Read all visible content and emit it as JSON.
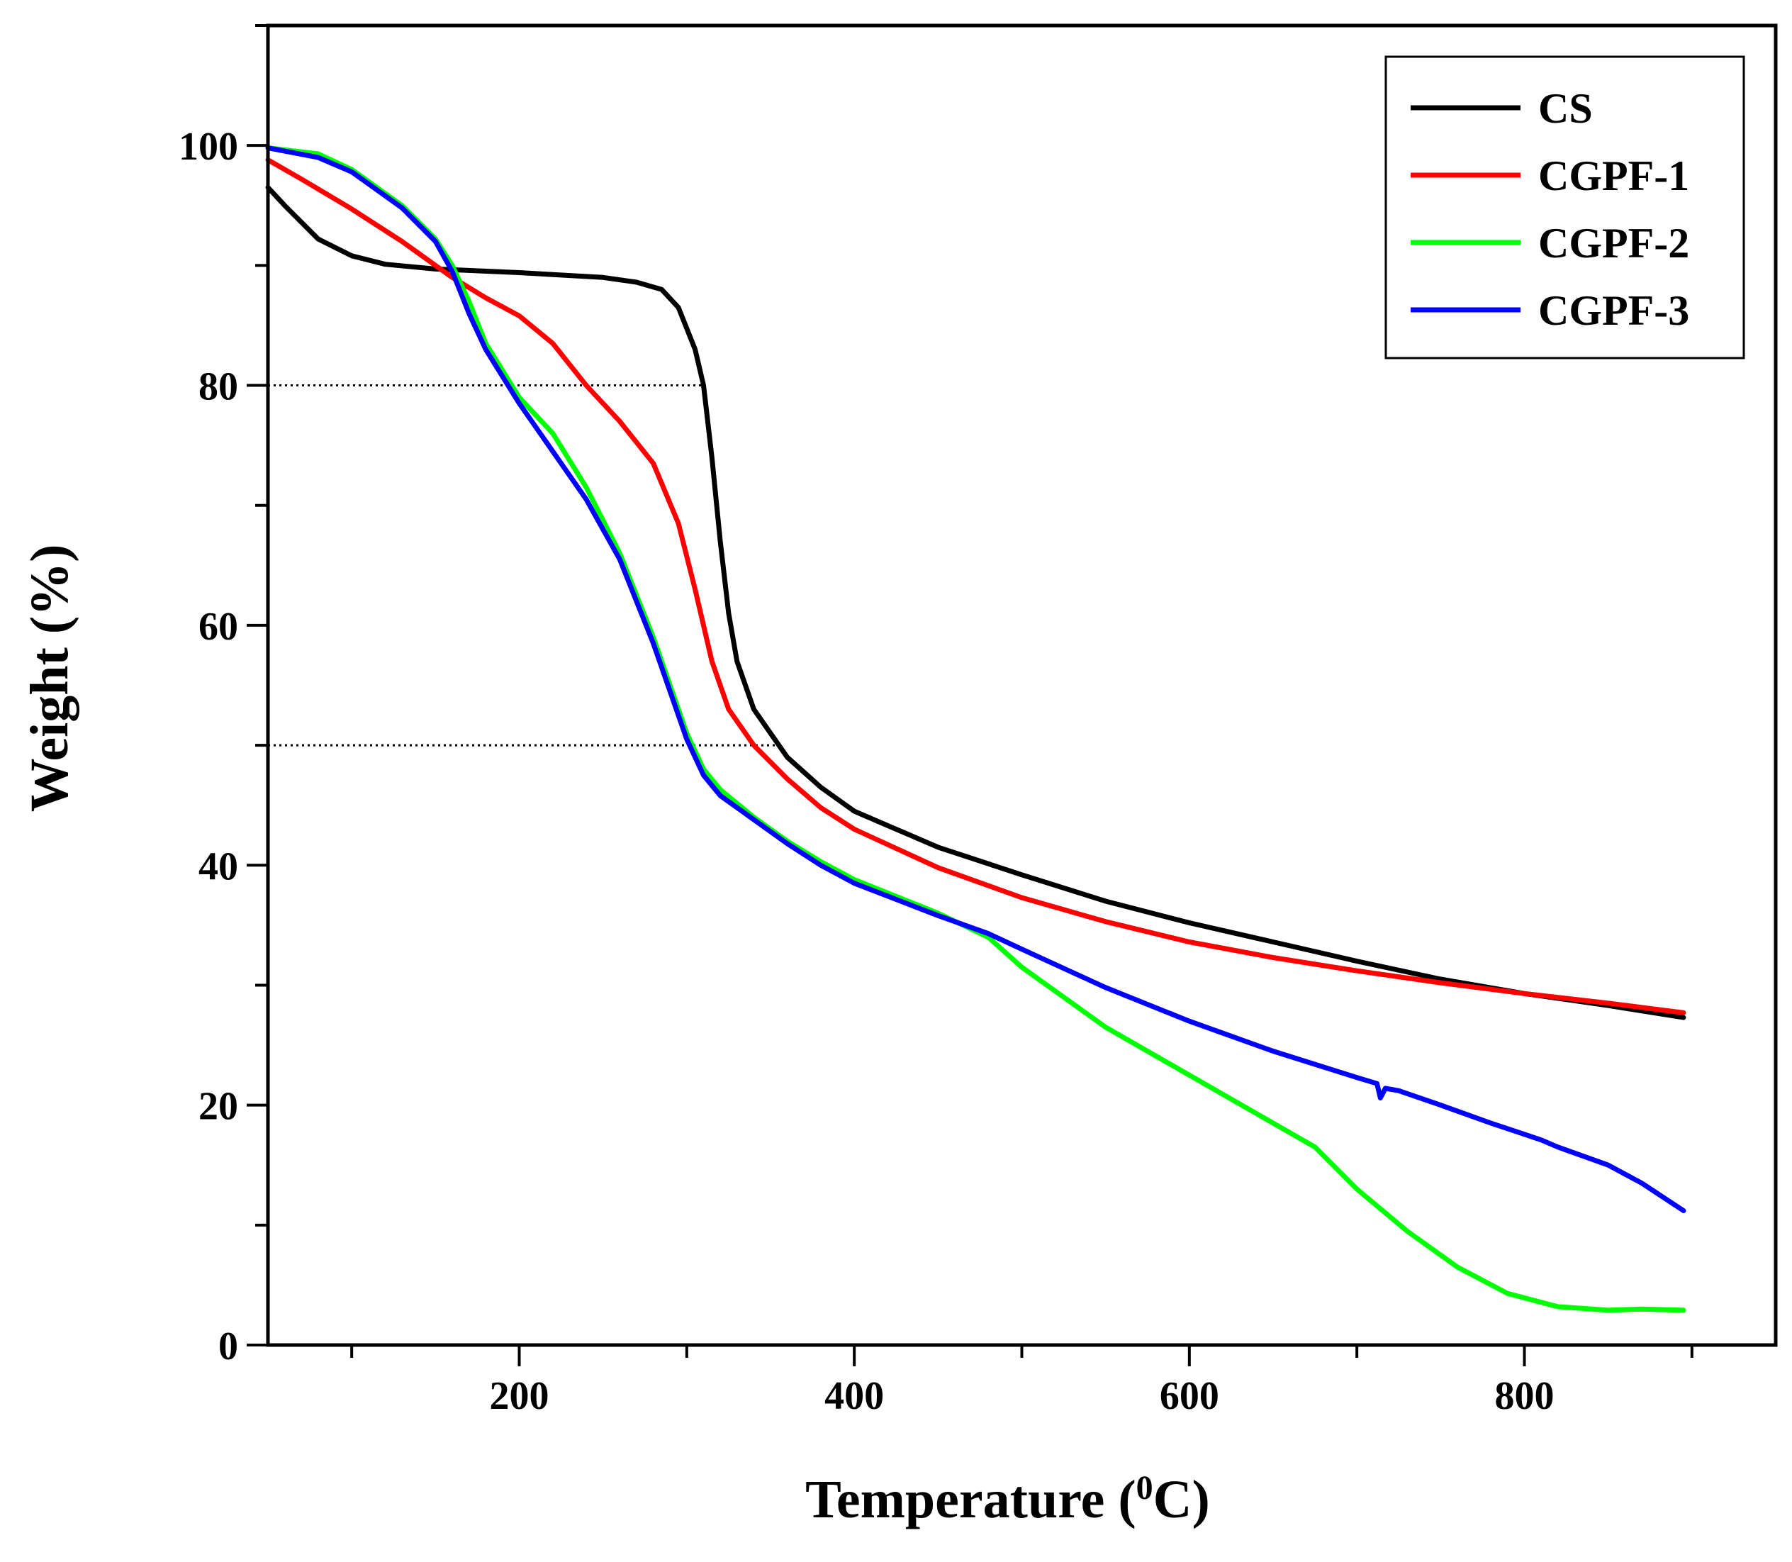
{
  "chart_data": {
    "type": "line",
    "title": "",
    "xlabel": "Temperature (",
    "xlabel_superscript": "0",
    "xlabel_suffix": "C)",
    "ylabel": "Weight (%)",
    "xlim": [
      50,
      950
    ],
    "ylim": [
      0,
      110
    ],
    "x_ticks": [
      200,
      400,
      600,
      800
    ],
    "y_ticks": [
      0,
      20,
      40,
      60,
      80,
      100
    ],
    "x_tick_labels": [
      "200",
      "400",
      "600",
      "800"
    ],
    "y_tick_labels": [
      "0",
      "20",
      "40",
      "60",
      "80",
      "100"
    ],
    "grid": false,
    "legend_position": "top-right",
    "reference_lines": [
      {
        "y": 80,
        "x_start": 50,
        "x_end": 310,
        "style": "dotted"
      },
      {
        "y": 50,
        "x_start": 50,
        "x_end": 355,
        "style": "dotted"
      }
    ],
    "series": [
      {
        "name": "CS",
        "color": "#000000",
        "points": [
          [
            50,
            96.5
          ],
          [
            60,
            95
          ],
          [
            80,
            92.2
          ],
          [
            100,
            90.8
          ],
          [
            120,
            90.1
          ],
          [
            150,
            89.7
          ],
          [
            200,
            89.4
          ],
          [
            250,
            89.0
          ],
          [
            270,
            88.6
          ],
          [
            285,
            88.0
          ],
          [
            295,
            86.5
          ],
          [
            305,
            83
          ],
          [
            310,
            80
          ],
          [
            315,
            74
          ],
          [
            320,
            67
          ],
          [
            325,
            61
          ],
          [
            330,
            57
          ],
          [
            340,
            53
          ],
          [
            360,
            49
          ],
          [
            380,
            46.5
          ],
          [
            400,
            44.5
          ],
          [
            450,
            41.5
          ],
          [
            500,
            39.2
          ],
          [
            550,
            37.0
          ],
          [
            600,
            35.2
          ],
          [
            650,
            33.6
          ],
          [
            700,
            32.0
          ],
          [
            750,
            30.5
          ],
          [
            800,
            29.3
          ],
          [
            850,
            28.3
          ],
          [
            895,
            27.3
          ]
        ]
      },
      {
        "name": "CGPF-1",
        "color": "#ff0000",
        "points": [
          [
            50,
            98.8
          ],
          [
            70,
            97.2
          ],
          [
            100,
            94.7
          ],
          [
            130,
            92.0
          ],
          [
            160,
            89.0
          ],
          [
            180,
            87.3
          ],
          [
            200,
            85.8
          ],
          [
            220,
            83.5
          ],
          [
            240,
            80.0
          ],
          [
            260,
            77.0
          ],
          [
            280,
            73.5
          ],
          [
            295,
            68.5
          ],
          [
            305,
            63
          ],
          [
            315,
            57
          ],
          [
            325,
            53
          ],
          [
            340,
            50
          ],
          [
            360,
            47.2
          ],
          [
            380,
            44.8
          ],
          [
            400,
            43.0
          ],
          [
            450,
            39.8
          ],
          [
            500,
            37.3
          ],
          [
            550,
            35.3
          ],
          [
            600,
            33.6
          ],
          [
            650,
            32.3
          ],
          [
            700,
            31.2
          ],
          [
            750,
            30.2
          ],
          [
            800,
            29.3
          ],
          [
            850,
            28.5
          ],
          [
            895,
            27.7
          ]
        ]
      },
      {
        "name": "CGPF-2",
        "color": "#00ff00",
        "points": [
          [
            50,
            99.8
          ],
          [
            80,
            99.3
          ],
          [
            100,
            98.0
          ],
          [
            130,
            95.0
          ],
          [
            150,
            92.2
          ],
          [
            160,
            90.0
          ],
          [
            170,
            87.0
          ],
          [
            180,
            83.5
          ],
          [
            200,
            79.0
          ],
          [
            220,
            76.0
          ],
          [
            240,
            71.5
          ],
          [
            260,
            66.0
          ],
          [
            280,
            59.0
          ],
          [
            300,
            51.0
          ],
          [
            310,
            48.0
          ],
          [
            320,
            46.3
          ],
          [
            340,
            44.0
          ],
          [
            360,
            42.0
          ],
          [
            380,
            40.3
          ],
          [
            400,
            38.8
          ],
          [
            450,
            36.0
          ],
          [
            480,
            34.0
          ],
          [
            500,
            31.5
          ],
          [
            550,
            26.5
          ],
          [
            600,
            22.5
          ],
          [
            650,
            18.5
          ],
          [
            675,
            16.5
          ],
          [
            700,
            13.0
          ],
          [
            730,
            9.5
          ],
          [
            760,
            6.5
          ],
          [
            790,
            4.3
          ],
          [
            820,
            3.2
          ],
          [
            850,
            2.9
          ],
          [
            870,
            3.0
          ],
          [
            895,
            2.9
          ]
        ]
      },
      {
        "name": "CGPF-3",
        "color": "#0000ff",
        "points": [
          [
            50,
            99.8
          ],
          [
            80,
            99.0
          ],
          [
            100,
            97.8
          ],
          [
            130,
            94.8
          ],
          [
            150,
            92.0
          ],
          [
            160,
            89.5
          ],
          [
            170,
            86.0
          ],
          [
            180,
            83.0
          ],
          [
            200,
            78.5
          ],
          [
            220,
            74.5
          ],
          [
            240,
            70.5
          ],
          [
            260,
            65.5
          ],
          [
            280,
            58.5
          ],
          [
            300,
            50.5
          ],
          [
            310,
            47.5
          ],
          [
            320,
            45.8
          ],
          [
            340,
            43.8
          ],
          [
            360,
            41.8
          ],
          [
            380,
            40.0
          ],
          [
            400,
            38.5
          ],
          [
            450,
            35.8
          ],
          [
            480,
            34.3
          ],
          [
            500,
            33.0
          ],
          [
            550,
            29.8
          ],
          [
            600,
            27.0
          ],
          [
            650,
            24.5
          ],
          [
            700,
            22.3
          ],
          [
            712,
            21.8
          ],
          [
            714,
            20.6
          ],
          [
            717,
            21.4
          ],
          [
            725,
            21.2
          ],
          [
            750,
            20.0
          ],
          [
            780,
            18.5
          ],
          [
            810,
            17.1
          ],
          [
            820,
            16.5
          ],
          [
            850,
            15.0
          ],
          [
            870,
            13.5
          ],
          [
            895,
            11.2
          ]
        ]
      }
    ]
  }
}
